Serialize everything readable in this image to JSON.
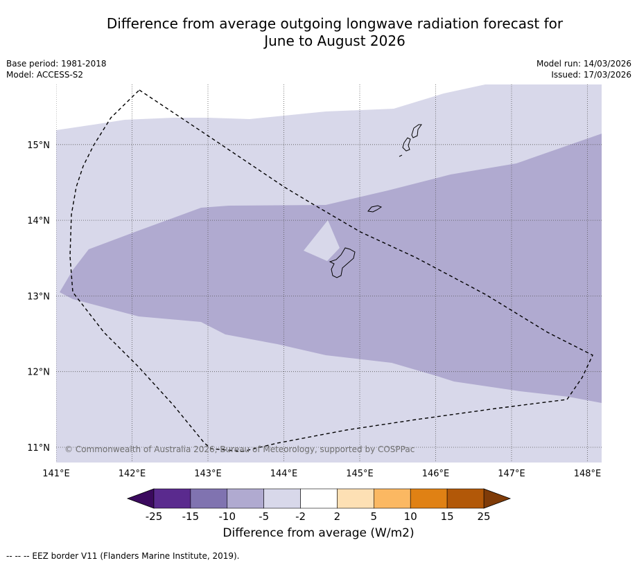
{
  "title": {
    "line1": "Difference from average outgoing longwave radiation forecast for",
    "line2": "June to August 2026"
  },
  "meta": {
    "base_period": "Base period: 1981-2018",
    "model": "Model: ACCESS-S2",
    "model_run": "Model run: 14/03/2026",
    "issued": "Issued: 17/03/2026"
  },
  "map": {
    "lon_range": [
      141,
      148.2
    ],
    "lat_range": [
      10.8,
      15.8
    ],
    "lon_ticks": [
      "141°E",
      "142°E",
      "143°E",
      "144°E",
      "145°E",
      "146°E",
      "147°E",
      "148°E"
    ],
    "lat_ticks": [
      "11°N",
      "12°N",
      "13°N",
      "14°N",
      "15°N"
    ],
    "copyright": "© Commonwealth of Australia 2026, Bureau of Meteorology, supported by COSPPac",
    "light_band_color": "#d8d8ea",
    "medium_band_color": "#b0aad0",
    "light_band_range": "-5 to -2",
    "medium_band_range": "-10 to -5",
    "eez_line_color": "#000000"
  },
  "colorbar": {
    "labels": [
      "-25",
      "-15",
      "-10",
      "-5",
      "-2",
      "2",
      "5",
      "10",
      "15",
      "25"
    ],
    "colors": [
      "#5a2a8e",
      "#8073b0",
      "#b0aad0",
      "#d8d8ea",
      "#ffffff",
      "#fde0b4",
      "#fbb862",
      "#e08114",
      "#b25808"
    ],
    "under_color": "#3b0a5e",
    "over_color": "#7f3b08",
    "title": "Difference from average (W/m2)"
  },
  "footnote": "--  --  -- EEZ border V11 (Flanders Marine Institute, 2019)."
}
